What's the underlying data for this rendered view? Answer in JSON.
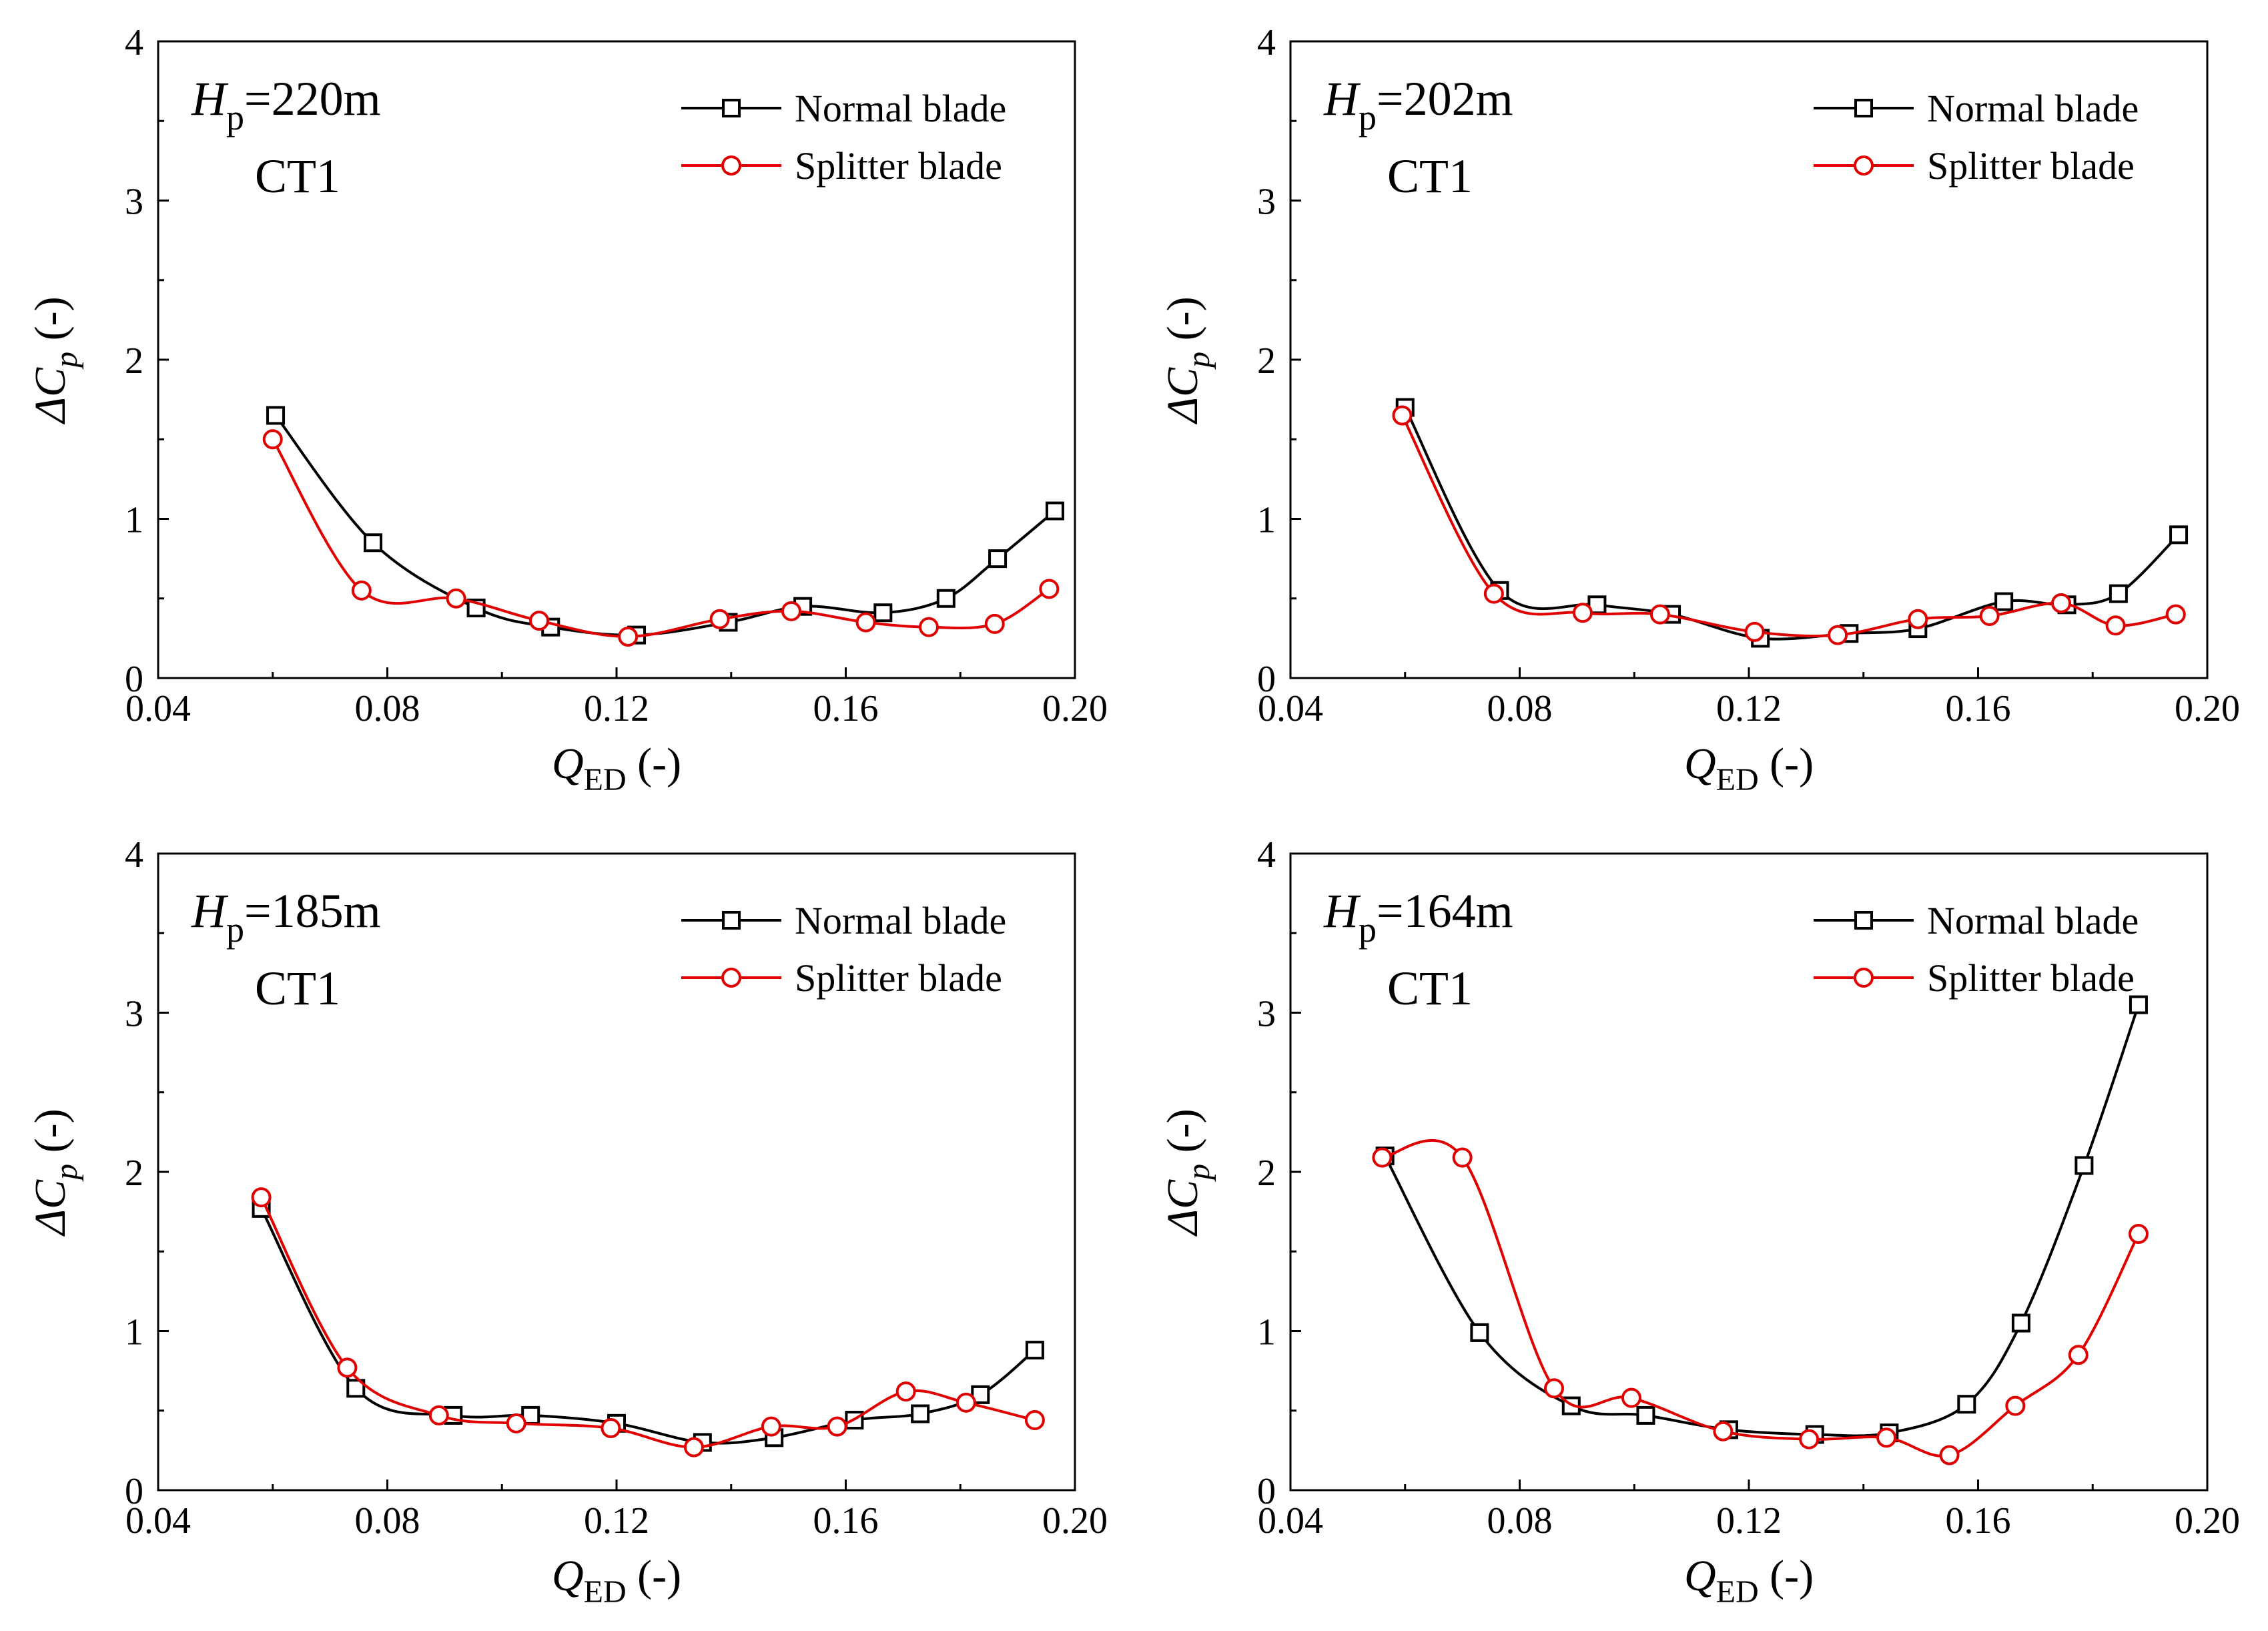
{
  "chart_data": [
    {
      "type": "line",
      "annotation": {
        "h_symbol": "H",
        "h_sub": "p",
        "h_value": "=220m",
        "label": "CT1"
      },
      "xlabel": {
        "symbol": "Q",
        "sub": "ED",
        "unit": " (-)"
      },
      "ylabel": {
        "prefix": "ΔC",
        "sub": "p",
        "unit": " (-)"
      },
      "xlim": [
        0.04,
        0.2
      ],
      "ylim": [
        0,
        4
      ],
      "xticks": [
        0.04,
        0.08,
        0.12,
        0.16,
        0.2
      ],
      "xtick_labels": [
        "0.04",
        "0.08",
        "0.12",
        "0.16",
        "0.20"
      ],
      "yticks": [
        0,
        1,
        2,
        3,
        4
      ],
      "ytick_labels": [
        "0",
        "1",
        "2",
        "3",
        "4"
      ],
      "legend_position": "top-right",
      "series": [
        {
          "name": "Normal blade",
          "color": "#000000",
          "marker": "square",
          "x": [
            0.0605,
            0.0775,
            0.0955,
            0.1085,
            0.1235,
            0.1395,
            0.1525,
            0.1665,
            0.1775,
            0.1865,
            0.1965
          ],
          "y": [
            1.65,
            0.85,
            0.44,
            0.32,
            0.27,
            0.35,
            0.45,
            0.41,
            0.5,
            0.75,
            1.05
          ]
        },
        {
          "name": "Splitter blade",
          "color": "#e00000",
          "marker": "circle",
          "x": [
            0.06,
            0.0755,
            0.092,
            0.1065,
            0.122,
            0.138,
            0.1505,
            0.1635,
            0.1745,
            0.186,
            0.1955
          ],
          "y": [
            1.5,
            0.55,
            0.5,
            0.36,
            0.26,
            0.37,
            0.42,
            0.35,
            0.32,
            0.34,
            0.56
          ]
        }
      ]
    },
    {
      "type": "line",
      "annotation": {
        "h_symbol": "H",
        "h_sub": "p",
        "h_value": "=202m",
        "label": "CT1"
      },
      "xlabel": {
        "symbol": "Q",
        "sub": "ED",
        "unit": " (-)"
      },
      "ylabel": {
        "prefix": "ΔC",
        "sub": "p",
        "unit": " (-)"
      },
      "xlim": [
        0.04,
        0.2
      ],
      "ylim": [
        0,
        4
      ],
      "xticks": [
        0.04,
        0.08,
        0.12,
        0.16,
        0.2
      ],
      "xtick_labels": [
        "0.04",
        "0.08",
        "0.12",
        "0.16",
        "0.20"
      ],
      "yticks": [
        0,
        1,
        2,
        3,
        4
      ],
      "ytick_labels": [
        "0",
        "1",
        "2",
        "3",
        "4"
      ],
      "legend_position": "top-right",
      "series": [
        {
          "name": "Normal blade",
          "color": "#000000",
          "marker": "square",
          "x": [
            0.06,
            0.0765,
            0.0935,
            0.1065,
            0.122,
            0.1375,
            0.1495,
            0.1645,
            0.1755,
            0.1845,
            0.195
          ],
          "y": [
            1.7,
            0.55,
            0.46,
            0.4,
            0.25,
            0.28,
            0.31,
            0.48,
            0.46,
            0.53,
            0.9
          ]
        },
        {
          "name": "Splitter blade",
          "color": "#e00000",
          "marker": "circle",
          "x": [
            0.0595,
            0.0755,
            0.091,
            0.1045,
            0.121,
            0.1355,
            0.1495,
            0.162,
            0.1745,
            0.184,
            0.1945
          ],
          "y": [
            1.65,
            0.53,
            0.41,
            0.4,
            0.29,
            0.27,
            0.37,
            0.39,
            0.47,
            0.33,
            0.4
          ]
        }
      ]
    },
    {
      "type": "line",
      "annotation": {
        "h_symbol": "H",
        "h_sub": "p",
        "h_value": "=185m",
        "label": "CT1"
      },
      "xlabel": {
        "symbol": "Q",
        "sub": "ED",
        "unit": " (-)"
      },
      "ylabel": {
        "prefix": "ΔC",
        "sub": "p",
        "unit": " (-)"
      },
      "xlim": [
        0.04,
        0.2
      ],
      "ylim": [
        0,
        4
      ],
      "xticks": [
        0.04,
        0.08,
        0.12,
        0.16,
        0.2
      ],
      "xtick_labels": [
        "0.04",
        "0.08",
        "0.12",
        "0.16",
        "0.20"
      ],
      "yticks": [
        0,
        1,
        2,
        3,
        4
      ],
      "ytick_labels": [
        "0",
        "1",
        "2",
        "3",
        "4"
      ],
      "legend_position": "top-right",
      "series": [
        {
          "name": "Normal blade",
          "color": "#000000",
          "marker": "square",
          "x": [
            0.058,
            0.0745,
            0.0915,
            0.105,
            0.12,
            0.135,
            0.1475,
            0.1615,
            0.173,
            0.1835,
            0.193
          ],
          "y": [
            1.77,
            0.64,
            0.47,
            0.47,
            0.42,
            0.3,
            0.33,
            0.44,
            0.48,
            0.6,
            0.88
          ]
        },
        {
          "name": "Splitter blade",
          "color": "#e00000",
          "marker": "circle",
          "x": [
            0.058,
            0.073,
            0.089,
            0.1025,
            0.119,
            0.1335,
            0.147,
            0.1585,
            0.1705,
            0.181,
            0.193
          ],
          "y": [
            1.84,
            0.77,
            0.47,
            0.42,
            0.39,
            0.27,
            0.4,
            0.4,
            0.62,
            0.55,
            0.44
          ]
        }
      ]
    },
    {
      "type": "line",
      "annotation": {
        "h_symbol": "H",
        "h_sub": "p",
        "h_value": "=164m",
        "label": "CT1"
      },
      "xlabel": {
        "symbol": "Q",
        "sub": "ED",
        "unit": " (-)"
      },
      "ylabel": {
        "prefix": "ΔC",
        "sub": "p",
        "unit": " (-)"
      },
      "xlim": [
        0.04,
        0.2
      ],
      "ylim": [
        0,
        4
      ],
      "xticks": [
        0.04,
        0.08,
        0.12,
        0.16,
        0.2
      ],
      "xtick_labels": [
        "0.04",
        "0.08",
        "0.12",
        "0.16",
        "0.20"
      ],
      "yticks": [
        0,
        1,
        2,
        3,
        4
      ],
      "ytick_labels": [
        "0",
        "1",
        "2",
        "3",
        "4"
      ],
      "legend_position": "top-right",
      "series": [
        {
          "name": "Normal blade",
          "color": "#000000",
          "marker": "square",
          "x": [
            0.0565,
            0.073,
            0.089,
            0.102,
            0.1165,
            0.1315,
            0.1445,
            0.158,
            0.1675,
            0.1785,
            0.188
          ],
          "y": [
            2.1,
            0.99,
            0.53,
            0.47,
            0.38,
            0.35,
            0.36,
            0.54,
            1.05,
            2.04,
            3.05
          ]
        },
        {
          "name": "Splitter blade",
          "color": "#e00000",
          "marker": "circle",
          "x": [
            0.056,
            0.07,
            0.086,
            0.0995,
            0.1155,
            0.1305,
            0.144,
            0.155,
            0.1665,
            0.1775,
            0.188
          ],
          "y": [
            2.09,
            2.09,
            0.64,
            0.58,
            0.37,
            0.32,
            0.33,
            0.22,
            0.53,
            0.85,
            1.61
          ]
        }
      ]
    }
  ]
}
